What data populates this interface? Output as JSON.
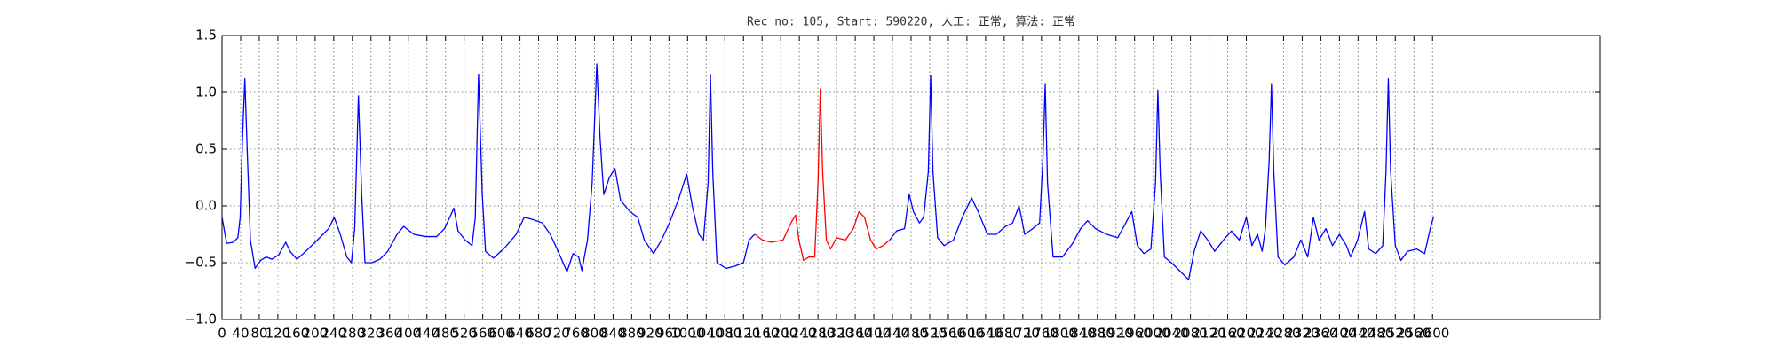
{
  "chart_data": {
    "type": "line",
    "title": "Rec_no: 105, Start: 590220, 人工: 正常, 算法: 正常",
    "xlim": [
      0,
      2960
    ],
    "xticks": [
      0,
      40,
      80,
      120,
      160,
      200,
      240,
      280,
      320,
      360,
      400,
      440,
      480,
      520,
      560,
      600,
      640,
      680,
      720,
      760,
      800,
      840,
      880,
      920,
      960,
      1000,
      1040,
      1080,
      1120,
      1160,
      1200,
      1240,
      1280,
      1320,
      1360,
      1400,
      1440,
      1480,
      1520,
      1560,
      1600,
      1640,
      1680,
      1720,
      1760,
      1800,
      1840,
      1880,
      1920,
      1960,
      2000,
      2040,
      2080,
      2120,
      2160,
      2200,
      2240,
      2280,
      2320,
      2360,
      2400,
      2440,
      2480,
      2520,
      2560,
      2600
    ],
    "ylim": [
      -1,
      1.5
    ],
    "yticks": [
      {
        "value": -1,
        "label": "−1.0"
      },
      {
        "value": -0.5,
        "label": "−0.5"
      },
      {
        "value": 0,
        "label": "0.0"
      },
      0.5,
      {
        "value": 1,
        "label": "1.0"
      },
      1.5
    ],
    "grid": true,
    "series": [
      {
        "color": "#0000ff",
        "x": [
          0,
          10,
          24,
          34,
          39,
          44,
          49,
          54,
          61,
          71,
          83,
          95,
          107,
          122,
          137,
          146,
          161,
          180,
          205,
          229,
          241,
          254,
          268,
          278,
          285,
          293,
          300,
          307,
          322,
          339,
          356,
          376,
          390,
          412,
          437,
          461,
          478,
          498,
          507,
          522,
          537,
          544,
          551,
          559,
          566,
          583,
          607,
          632,
          649,
          668,
          688,
          705,
          722,
          741,
          754,
          766,
          773,
          785,
          795,
          805,
          812,
          820,
          832,
          844,
          856,
          876,
          893,
          907,
          927,
          944,
          961,
          980,
          998,
          1010,
          1024,
          1034,
          1044,
          1049,
          1054,
          1063,
          1083,
          1102,
          1120,
          1132,
          1144
        ],
        "values": [
          -0.1,
          -0.33,
          -0.32,
          -0.28,
          -0.1,
          0.6,
          1.12,
          0.5,
          -0.3,
          -0.55,
          -0.48,
          -0.45,
          -0.47,
          -0.43,
          -0.32,
          -0.4,
          -0.47,
          -0.4,
          -0.3,
          -0.2,
          -0.1,
          -0.25,
          -0.45,
          -0.5,
          -0.2,
          0.97,
          0.1,
          -0.5,
          -0.5,
          -0.47,
          -0.4,
          -0.25,
          -0.18,
          -0.25,
          -0.27,
          -0.27,
          -0.2,
          -0.02,
          -0.22,
          -0.3,
          -0.35,
          -0.1,
          1.16,
          0.1,
          -0.4,
          -0.46,
          -0.37,
          -0.25,
          -0.1,
          -0.12,
          -0.15,
          -0.25,
          -0.4,
          -0.58,
          -0.42,
          -0.45,
          -0.57,
          -0.3,
          0.2,
          1.25,
          0.6,
          0.1,
          0.25,
          0.33,
          0.05,
          -0.05,
          -0.1,
          -0.3,
          -0.42,
          -0.3,
          -0.15,
          0.05,
          0.28,
          0.0,
          -0.25,
          -0.3,
          0.2,
          1.16,
          0.3,
          -0.5,
          -0.55,
          -0.53,
          -0.5,
          -0.3,
          -0.25
        ]
      },
      {
        "color": "#ff0000",
        "x": [
          1144,
          1161,
          1180,
          1205,
          1222,
          1232,
          1239,
          1249,
          1261,
          1273,
          1280,
          1285,
          1290,
          1298,
          1307,
          1320,
          1339,
          1356,
          1368,
          1380,
          1393,
          1405,
          1420,
          1434
        ],
        "values": [
          -0.25,
          -0.3,
          -0.32,
          -0.3,
          -0.15,
          -0.08,
          -0.3,
          -0.48,
          -0.45,
          -0.45,
          0.2,
          1.03,
          0.3,
          -0.3,
          -0.38,
          -0.28,
          -0.3,
          -0.2,
          -0.05,
          -0.1,
          -0.3,
          -0.38,
          -0.35,
          -0.3
        ]
      },
      {
        "color": "#0000ff",
        "x": [
          1434,
          1449,
          1466,
          1476,
          1485,
          1498,
          1507,
          1517,
          1522,
          1527,
          1537,
          1551,
          1571,
          1590,
          1610,
          1624,
          1644,
          1663,
          1683,
          1698,
          1712,
          1724,
          1741,
          1756,
          1763,
          1768,
          1773,
          1785,
          1805,
          1827,
          1844,
          1859,
          1876,
          1900,
          1924,
          1941,
          1954,
          1966,
          1980,
          1995,
          2005,
          2010,
          2015,
          2024,
          2039,
          2059,
          2076,
          2088,
          2102,
          2117,
          2132,
          2151,
          2168,
          2185,
          2200,
          2212,
          2224,
          2234,
          2241,
          2249,
          2254,
          2259,
          2268,
          2283,
          2302,
          2317,
          2332,
          2344,
          2356,
          2371,
          2385,
          2400,
          2415,
          2424,
          2439,
          2454,
          2463,
          2478,
          2493,
          2500,
          2505,
          2510,
          2520,
          2532,
          2546,
          2566,
          2583,
          2595,
          2602
        ],
        "values": [
          -0.3,
          -0.22,
          -0.2,
          0.1,
          -0.05,
          -0.15,
          -0.1,
          0.3,
          1.15,
          0.3,
          -0.28,
          -0.35,
          -0.3,
          -0.1,
          0.07,
          -0.05,
          -0.25,
          -0.25,
          -0.18,
          -0.15,
          0.0,
          -0.25,
          -0.2,
          -0.15,
          0.4,
          1.07,
          0.2,
          -0.45,
          -0.45,
          -0.33,
          -0.2,
          -0.13,
          -0.2,
          -0.25,
          -0.28,
          -0.15,
          -0.05,
          -0.35,
          -0.42,
          -0.38,
          0.2,
          1.02,
          0.3,
          -0.45,
          -0.5,
          -0.58,
          -0.65,
          -0.4,
          -0.22,
          -0.3,
          -0.4,
          -0.3,
          -0.22,
          -0.3,
          -0.1,
          -0.35,
          -0.25,
          -0.4,
          -0.2,
          0.4,
          1.07,
          0.3,
          -0.45,
          -0.52,
          -0.45,
          -0.3,
          -0.45,
          -0.1,
          -0.3,
          -0.2,
          -0.35,
          -0.25,
          -0.35,
          -0.45,
          -0.3,
          -0.05,
          -0.38,
          -0.42,
          -0.35,
          0.3,
          1.12,
          0.3,
          -0.35,
          -0.48,
          -0.4,
          -0.38,
          -0.42,
          -0.2,
          -0.1
        ]
      }
    ]
  }
}
